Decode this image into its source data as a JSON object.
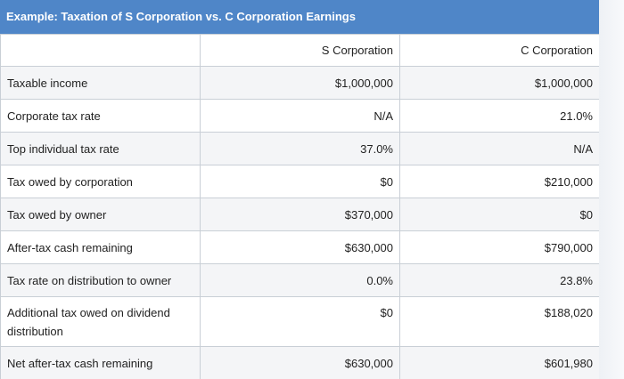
{
  "title": "Example: Taxation of S Corporation vs. C Corporation Earnings",
  "columns": [
    "S Corporation",
    "C Corporation"
  ],
  "rows": [
    {
      "label": "Taxable income",
      "s": "$1,000,000",
      "c": "$1,000,000"
    },
    {
      "label": "Corporate tax rate",
      "s": "N/A",
      "c": "21.0%"
    },
    {
      "label": "Top individual tax rate",
      "s": "37.0%",
      "c": "N/A"
    },
    {
      "label": "Tax owed by corporation",
      "s": "$0",
      "c": "$210,000"
    },
    {
      "label": "Tax owed by owner",
      "s": "$370,000",
      "c": "$0"
    },
    {
      "label": "After-tax cash remaining",
      "s": "$630,000",
      "c": "$790,000"
    },
    {
      "label": "Tax rate on distribution to owner",
      "s": "0.0%",
      "c": "23.8%"
    },
    {
      "label": "Additional tax owed on dividend distribution",
      "s": "$0",
      "c": "$188,020"
    },
    {
      "label": "Net after-tax cash remaining",
      "s": "$630,000",
      "c": "$601,980"
    }
  ],
  "colors": {
    "header_bg": "#4f86c8",
    "header_text": "#ffffff",
    "row_alt": "#f4f5f7",
    "border": "#c9cfd6"
  }
}
